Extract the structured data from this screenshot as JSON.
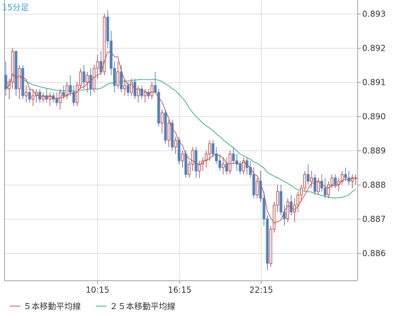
{
  "chart_data": {
    "type": "candlestick",
    "interval_label": "15分足",
    "y_ticks": [
      "0.893",
      "0.892",
      "0.891",
      "0.890",
      "0.889",
      "0.888",
      "0.887",
      "0.886"
    ],
    "ylim": [
      0.8852,
      0.8934
    ],
    "x_ticks": [
      {
        "label": "10:15",
        "index": 27
      },
      {
        "label": "16:15",
        "index": 51
      },
      {
        "label": "22:15",
        "index": 75
      }
    ],
    "bar_count": 104,
    "grid": true,
    "legend_position": "bottom",
    "colors": {
      "up": "#c0504d",
      "down": "#4f81bd",
      "ma5": "#c0504d",
      "ma25": "#2aa87a",
      "grid": "#dddddd",
      "axis": "#999999"
    },
    "series": [
      {
        "name": "５本移動平均線",
        "key": "ma5"
      },
      {
        "name": "２５本移動平均線",
        "key": "ma25"
      }
    ],
    "candles": [
      [
        0.8912,
        0.8916,
        0.8906,
        0.8908
      ],
      [
        0.8908,
        0.8911,
        0.8905,
        0.891
      ],
      [
        0.891,
        0.892,
        0.8908,
        0.8919
      ],
      [
        0.8919,
        0.8919,
        0.8906,
        0.8908
      ],
      [
        0.8908,
        0.8915,
        0.8905,
        0.8914
      ],
      [
        0.8914,
        0.8915,
        0.8905,
        0.8906
      ],
      [
        0.8906,
        0.8909,
        0.8904,
        0.8907
      ],
      [
        0.8907,
        0.8908,
        0.8904,
        0.8905
      ],
      [
        0.8905,
        0.8908,
        0.8903,
        0.8906
      ],
      [
        0.8906,
        0.8908,
        0.8904,
        0.8907
      ],
      [
        0.8907,
        0.8908,
        0.8904,
        0.8905
      ],
      [
        0.8905,
        0.8907,
        0.8904,
        0.8906
      ],
      [
        0.8906,
        0.8908,
        0.8904,
        0.8905
      ],
      [
        0.8905,
        0.8907,
        0.8903,
        0.8906
      ],
      [
        0.8906,
        0.8907,
        0.8904,
        0.8905
      ],
      [
        0.8905,
        0.8907,
        0.8903,
        0.8904
      ],
      [
        0.8904,
        0.8908,
        0.8902,
        0.8907
      ],
      [
        0.8907,
        0.8909,
        0.8905,
        0.8906
      ],
      [
        0.8906,
        0.891,
        0.8905,
        0.8909
      ],
      [
        0.8909,
        0.8912,
        0.8906,
        0.8907
      ],
      [
        0.8907,
        0.8909,
        0.8903,
        0.8904
      ],
      [
        0.8904,
        0.891,
        0.8903,
        0.8909
      ],
      [
        0.8909,
        0.8914,
        0.8908,
        0.8913
      ],
      [
        0.8913,
        0.8915,
        0.8908,
        0.891
      ],
      [
        0.891,
        0.8913,
        0.8907,
        0.8912
      ],
      [
        0.8912,
        0.8914,
        0.8906,
        0.8908
      ],
      [
        0.8908,
        0.8915,
        0.8907,
        0.8914
      ],
      [
        0.8914,
        0.8918,
        0.8911,
        0.8916
      ],
      [
        0.8916,
        0.8919,
        0.8912,
        0.8913
      ],
      [
        0.8913,
        0.893,
        0.8912,
        0.8929
      ],
      [
        0.8929,
        0.8931,
        0.892,
        0.8922
      ],
      [
        0.8922,
        0.8925,
        0.8912,
        0.8914
      ],
      [
        0.8914,
        0.8916,
        0.8907,
        0.8909
      ],
      [
        0.8909,
        0.8916,
        0.8908,
        0.8913
      ],
      [
        0.8913,
        0.8915,
        0.8907,
        0.8908
      ],
      [
        0.8908,
        0.8911,
        0.8906,
        0.8909
      ],
      [
        0.8909,
        0.891,
        0.8906,
        0.8907
      ],
      [
        0.8907,
        0.8911,
        0.8906,
        0.891
      ],
      [
        0.891,
        0.8911,
        0.8905,
        0.8906
      ],
      [
        0.8906,
        0.8909,
        0.8904,
        0.8908
      ],
      [
        0.8908,
        0.8909,
        0.8905,
        0.8906
      ],
      [
        0.8906,
        0.8908,
        0.8904,
        0.8907
      ],
      [
        0.8907,
        0.8908,
        0.8905,
        0.8906
      ],
      [
        0.8906,
        0.891,
        0.8905,
        0.8909
      ],
      [
        0.8909,
        0.8913,
        0.8907,
        0.8907
      ],
      [
        0.8907,
        0.8908,
        0.8897,
        0.8898
      ],
      [
        0.8898,
        0.8902,
        0.8895,
        0.8901
      ],
      [
        0.8901,
        0.8902,
        0.8892,
        0.8893
      ],
      [
        0.8893,
        0.8899,
        0.8891,
        0.8898
      ],
      [
        0.8898,
        0.8899,
        0.889,
        0.8891
      ],
      [
        0.8891,
        0.8894,
        0.8889,
        0.8893
      ],
      [
        0.8893,
        0.8894,
        0.8886,
        0.8887
      ],
      [
        0.8887,
        0.889,
        0.8885,
        0.8889
      ],
      [
        0.8889,
        0.889,
        0.8882,
        0.8883
      ],
      [
        0.8883,
        0.8887,
        0.8882,
        0.8886
      ],
      [
        0.8886,
        0.8891,
        0.8884,
        0.889
      ],
      [
        0.889,
        0.8891,
        0.8882,
        0.8884
      ],
      [
        0.8884,
        0.8887,
        0.8882,
        0.8886
      ],
      [
        0.8886,
        0.8888,
        0.8884,
        0.8887
      ],
      [
        0.8887,
        0.889,
        0.8885,
        0.8889
      ],
      [
        0.8889,
        0.8893,
        0.8887,
        0.8892
      ],
      [
        0.8892,
        0.8893,
        0.8888,
        0.8889
      ],
      [
        0.8889,
        0.8891,
        0.8886,
        0.8887
      ],
      [
        0.8887,
        0.8889,
        0.8884,
        0.8885
      ],
      [
        0.8885,
        0.8888,
        0.8883,
        0.8886
      ],
      [
        0.8886,
        0.8888,
        0.8883,
        0.8884
      ],
      [
        0.8884,
        0.889,
        0.8883,
        0.8889
      ],
      [
        0.8889,
        0.8891,
        0.8886,
        0.8887
      ],
      [
        0.8887,
        0.8889,
        0.8884,
        0.8886
      ],
      [
        0.8886,
        0.8887,
        0.8883,
        0.8884
      ],
      [
        0.8884,
        0.8888,
        0.8883,
        0.8887
      ],
      [
        0.8887,
        0.8888,
        0.8883,
        0.8885
      ],
      [
        0.8885,
        0.8887,
        0.8882,
        0.8883
      ],
      [
        0.8883,
        0.8885,
        0.8876,
        0.8877
      ],
      [
        0.8877,
        0.8882,
        0.8876,
        0.8881
      ],
      [
        0.8881,
        0.8884,
        0.8875,
        0.8876
      ],
      [
        0.8876,
        0.8878,
        0.8868,
        0.887
      ],
      [
        0.887,
        0.8871,
        0.8855,
        0.8857
      ],
      [
        0.8857,
        0.8868,
        0.8856,
        0.8867
      ],
      [
        0.8867,
        0.8875,
        0.8866,
        0.8874
      ],
      [
        0.8874,
        0.888,
        0.8872,
        0.8878
      ],
      [
        0.8878,
        0.888,
        0.8871,
        0.8872
      ],
      [
        0.8872,
        0.8874,
        0.8868,
        0.887
      ],
      [
        0.887,
        0.8876,
        0.8869,
        0.8875
      ],
      [
        0.8875,
        0.8877,
        0.8871,
        0.8872
      ],
      [
        0.8872,
        0.8876,
        0.8869,
        0.8874
      ],
      [
        0.8874,
        0.8878,
        0.8872,
        0.8877
      ],
      [
        0.8877,
        0.888,
        0.8875,
        0.8879
      ],
      [
        0.8879,
        0.8884,
        0.8878,
        0.8883
      ],
      [
        0.8883,
        0.8886,
        0.888,
        0.8881
      ],
      [
        0.8881,
        0.8884,
        0.8879,
        0.8882
      ],
      [
        0.8882,
        0.8883,
        0.8877,
        0.8878
      ],
      [
        0.8878,
        0.8882,
        0.8877,
        0.8881
      ],
      [
        0.8881,
        0.8883,
        0.8878,
        0.8879
      ],
      [
        0.8879,
        0.8882,
        0.8876,
        0.8877
      ],
      [
        0.8877,
        0.8881,
        0.8876,
        0.888
      ],
      [
        0.888,
        0.8883,
        0.8879,
        0.8882
      ],
      [
        0.8882,
        0.8883,
        0.8879,
        0.888
      ],
      [
        0.888,
        0.8882,
        0.8878,
        0.8881
      ],
      [
        0.8881,
        0.8884,
        0.888,
        0.8883
      ],
      [
        0.8883,
        0.8885,
        0.8881,
        0.8882
      ],
      [
        0.8882,
        0.8884,
        0.888,
        0.8881
      ],
      [
        0.8881,
        0.8883,
        0.8879,
        0.8882
      ],
      [
        0.8882,
        0.8883,
        0.888,
        0.8882
      ]
    ]
  }
}
